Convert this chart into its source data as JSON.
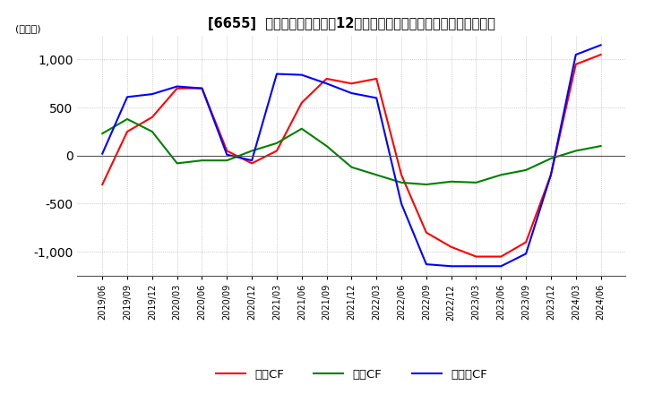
{
  "title": "[6655]  キャッシュフローの12か月移動合計の対前年同期増減額の推移",
  "ylabel": "(百万円)",
  "ylim": [
    -1250,
    1250
  ],
  "yticks": [
    -1000,
    -500,
    0,
    500,
    1000
  ],
  "legend_labels": [
    "営業CF",
    "投資CF",
    "フリーCF"
  ],
  "line_colors": [
    "#ff0000",
    "#008000",
    "#0000ff"
  ],
  "x_labels": [
    "2019/06",
    "2019/09",
    "2019/12",
    "2020/03",
    "2020/06",
    "2020/09",
    "2020/12",
    "2021/03",
    "2021/06",
    "2021/09",
    "2021/12",
    "2022/03",
    "2022/06",
    "2022/09",
    "2022/12",
    "2023/03",
    "2023/06",
    "2023/09",
    "2023/12",
    "2024/03",
    "2024/06"
  ],
  "series_eiGyoCF": [
    -300,
    250,
    400,
    700,
    700,
    50,
    -80,
    50,
    550,
    800,
    750,
    800,
    -200,
    -800,
    -950,
    -1050,
    -1050,
    -900,
    -200,
    950,
    1050
  ],
  "series_toushiCF": [
    230,
    380,
    250,
    -80,
    -50,
    -50,
    50,
    130,
    280,
    100,
    -120,
    -200,
    -280,
    -300,
    -270,
    -280,
    -200,
    -150,
    -30,
    50,
    100
  ],
  "series_freeCF": [
    20,
    610,
    640,
    720,
    700,
    10,
    -50,
    850,
    840,
    750,
    650,
    600,
    -500,
    -1130,
    -1150,
    -1150,
    -1150,
    -1020,
    -200,
    1050,
    1150
  ],
  "background_color": "#ffffff",
  "grid_color": "#aaaaaa"
}
